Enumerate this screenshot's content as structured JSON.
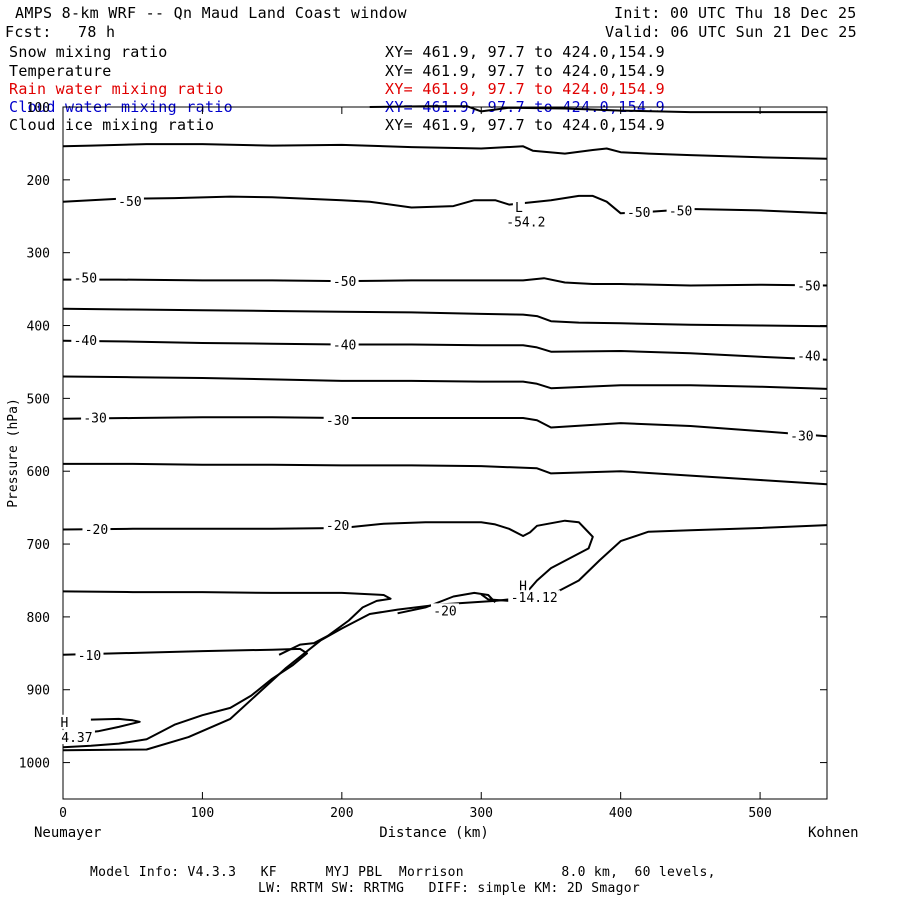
{
  "header": {
    "title": "AMPS 8-km WRF -- Qn Maud Land Coast window",
    "init": "Init: 00 UTC Thu 18 Dec 25",
    "fcst_label": "Fcst:",
    "fcst_value": "78 h",
    "valid": "Valid: 06 UTC Sun 21 Dec 25"
  },
  "fields": [
    {
      "name": "Snow mixing ratio",
      "xy": "XY= 461.9, 97.7 to 424.0,154.9",
      "color": "#000000"
    },
    {
      "name": "Temperature",
      "xy": "XY= 461.9, 97.7 to 424.0,154.9",
      "color": "#000000"
    },
    {
      "name": "Rain water mixing ratio",
      "xy": "XY= 461.9, 97.7 to 424.0,154.9",
      "color": "#e00000"
    },
    {
      "name": "Cloud water mixing ratio",
      "xy": "XY= 461.9, 97.7 to 424.0,154.9",
      "color": "#0000cc"
    },
    {
      "name": "Cloud ice mixing ratio",
      "xy": "XY= 461.9, 97.7 to 424.0,154.9",
      "color": "#000000"
    }
  ],
  "chart_data": {
    "type": "line",
    "subtype": "cross-section contour plot",
    "xlabel": "Distance (km)",
    "ylabel": "Pressure (hPa)",
    "xlim": [
      0,
      548
    ],
    "ylim": [
      1050,
      100
    ],
    "x_ticks": [
      0,
      100,
      200,
      300,
      400,
      500
    ],
    "y_ticks": [
      100,
      200,
      300,
      400,
      500,
      600,
      700,
      800,
      900,
      1000
    ],
    "start_label": "Neumayer",
    "end_label": "Kohnen",
    "contours": [
      {
        "level": -60,
        "x": [
          220,
          260,
          290,
          300,
          320,
          360,
          400,
          450,
          500,
          548
        ],
        "p": [
          100,
          99,
          99,
          106,
          101,
          102,
          105,
          107,
          107,
          107
        ]
      },
      {
        "level": -50,
        "x": [
          0,
          20,
          60,
          100,
          150,
          200,
          250,
          300,
          330,
          337,
          360,
          380,
          390,
          400,
          420,
          450,
          500,
          548
        ],
        "p": [
          154,
          153,
          151,
          151,
          153,
          152,
          155,
          157,
          154,
          160,
          164,
          159,
          157,
          162,
          164,
          166,
          169,
          171
        ]
      },
      {
        "level": -50,
        "x": [
          0,
          20,
          40,
          80,
          120,
          150,
          200,
          220,
          250,
          280,
          295,
          310,
          320,
          350,
          370,
          380,
          390,
          400,
          420,
          450,
          500,
          548
        ],
        "p": [
          230,
          228,
          226,
          225,
          223,
          224,
          228,
          230,
          238,
          236,
          228,
          228,
          234,
          228,
          222,
          222,
          230,
          246,
          244,
          240,
          242,
          246
        ]
      },
      {
        "level": -50,
        "x": [
          0,
          40,
          100,
          150,
          200,
          250,
          300,
          330,
          345,
          360,
          380,
          400,
          450,
          500,
          548
        ],
        "p": [
          337,
          337,
          338,
          338,
          339,
          338,
          338,
          338,
          335,
          341,
          343,
          343,
          345,
          344,
          345
        ]
      },
      {
        "level": -50,
        "x": [
          0,
          50,
          100,
          150,
          200,
          250,
          300,
          330,
          340,
          350,
          370,
          400,
          450,
          500,
          548
        ],
        "p": [
          377,
          378,
          379,
          380,
          381,
          382,
          384,
          385,
          387,
          394,
          396,
          397,
          399,
          400,
          401
        ]
      },
      {
        "level": -40,
        "x": [
          0,
          50,
          100,
          150,
          200,
          250,
          300,
          330,
          340,
          350,
          400,
          450,
          500,
          548
        ],
        "p": [
          421,
          422,
          424,
          425,
          426,
          426,
          427,
          427,
          430,
          436,
          435,
          438,
          443,
          447
        ]
      },
      {
        "level": -40,
        "x": [
          0,
          50,
          100,
          150,
          200,
          250,
          300,
          330,
          340,
          350,
          400,
          450,
          500,
          548
        ],
        "p": [
          470,
          471,
          472,
          474,
          476,
          476,
          477,
          477,
          480,
          486,
          482,
          482,
          484,
          487
        ]
      },
      {
        "level": -30,
        "x": [
          0,
          50,
          100,
          150,
          200,
          250,
          300,
          330,
          340,
          350,
          400,
          450,
          500,
          548
        ],
        "p": [
          528,
          527,
          526,
          526,
          527,
          527,
          527,
          527,
          530,
          540,
          534,
          538,
          545,
          552
        ]
      },
      {
        "level": -30,
        "x": [
          0,
          50,
          100,
          150,
          200,
          250,
          300,
          340,
          350,
          400,
          450,
          500,
          548
        ],
        "p": [
          590,
          590,
          591,
          591,
          592,
          592,
          593,
          596,
          603,
          600,
          606,
          612,
          618
        ]
      },
      {
        "level": -20,
        "x": [
          0,
          50,
          100,
          150,
          200,
          230,
          260,
          280,
          300,
          310,
          320,
          330,
          335,
          340,
          360,
          370,
          375,
          380,
          377,
          350,
          340,
          330,
          320,
          305,
          300
        ],
        "p": [
          680,
          679,
          679,
          679,
          678,
          672,
          670,
          670,
          670,
          673,
          679,
          689,
          684,
          675,
          668,
          670,
          680,
          690,
          706,
          733,
          750,
          772,
          778,
          776,
          769
        ]
      },
      {
        "level": -20,
        "x": [
          0,
          50,
          100,
          150,
          200,
          230,
          235,
          225,
          215,
          205,
          190,
          180,
          170,
          155
        ],
        "p": [
          765,
          766,
          766,
          767,
          767,
          770,
          775,
          778,
          787,
          805,
          826,
          836,
          838,
          852
        ]
      },
      {
        "level": -20,
        "x": [
          240,
          260,
          280,
          295,
          305,
          310
        ],
        "p": [
          795,
          787,
          772,
          767,
          770,
          780
        ]
      },
      {
        "level": -10,
        "x": [
          0,
          40,
          100,
          150,
          170,
          175,
          165,
          150,
          135,
          120,
          100,
          80,
          70,
          60,
          40,
          20,
          0
        ],
        "p": [
          852,
          850,
          847,
          845,
          844,
          850,
          866,
          885,
          908,
          925,
          935,
          948,
          958,
          968,
          974,
          977,
          979
        ]
      },
      {
        "level": -10,
        "x": [
          20,
          40,
          50,
          55,
          40,
          25,
          20
        ],
        "p": [
          941,
          940,
          942,
          944,
          951,
          957,
          958
        ]
      },
      {
        "level": -20,
        "x": [
          0,
          60,
          90,
          120,
          140,
          160,
          185,
          200,
          220,
          240,
          270,
          310,
          350,
          370,
          385,
          400,
          420,
          450,
          500,
          548
        ],
        "p": [
          983,
          982,
          965,
          940,
          905,
          870,
          832,
          816,
          796,
          790,
          783,
          778,
          770,
          750,
          722,
          696,
          683,
          681,
          678,
          674
        ]
      }
    ],
    "annotations": [
      {
        "text": "-50",
        "x": 48,
        "p": 229
      },
      {
        "text": "-50",
        "x": 413,
        "p": 244
      },
      {
        "text": "-50",
        "x": 443,
        "p": 242
      },
      {
        "text": "L",
        "x": 327,
        "p": 237
      },
      {
        "text": "-54.2",
        "x": 332,
        "p": 257
      },
      {
        "text": "-50",
        "x": 16,
        "p": 334
      },
      {
        "text": "-50",
        "x": 202,
        "p": 339
      },
      {
        "text": "-50",
        "x": 535,
        "p": 345
      },
      {
        "text": "-40",
        "x": 16,
        "p": 420
      },
      {
        "text": "-40",
        "x": 202,
        "p": 426
      },
      {
        "text": "-40",
        "x": 535,
        "p": 441
      },
      {
        "text": "-30",
        "x": 23,
        "p": 526
      },
      {
        "text": "-30",
        "x": 197,
        "p": 530
      },
      {
        "text": "-30",
        "x": 530,
        "p": 551
      },
      {
        "text": "-20",
        "x": 24,
        "p": 679
      },
      {
        "text": "-20",
        "x": 197,
        "p": 674
      },
      {
        "text": "-20",
        "x": 274,
        "p": 791
      },
      {
        "text": "H",
        "x": 330,
        "p": 757
      },
      {
        "text": "-14.12",
        "x": 338,
        "p": 773
      },
      {
        "text": "-10",
        "x": 19,
        "p": 852
      },
      {
        "text": "H",
        "x": 1,
        "p": 944
      },
      {
        "text": "4.37",
        "x": 10,
        "p": 965
      }
    ]
  },
  "footer": {
    "model_info": "Model Info: V4.3.3   KF      MYJ PBL  Morrison            8.0 km,  60 levels,",
    "physics": "LW: RRTM SW: RRTMG   DIFF: simple KM: 2D Smagor"
  }
}
